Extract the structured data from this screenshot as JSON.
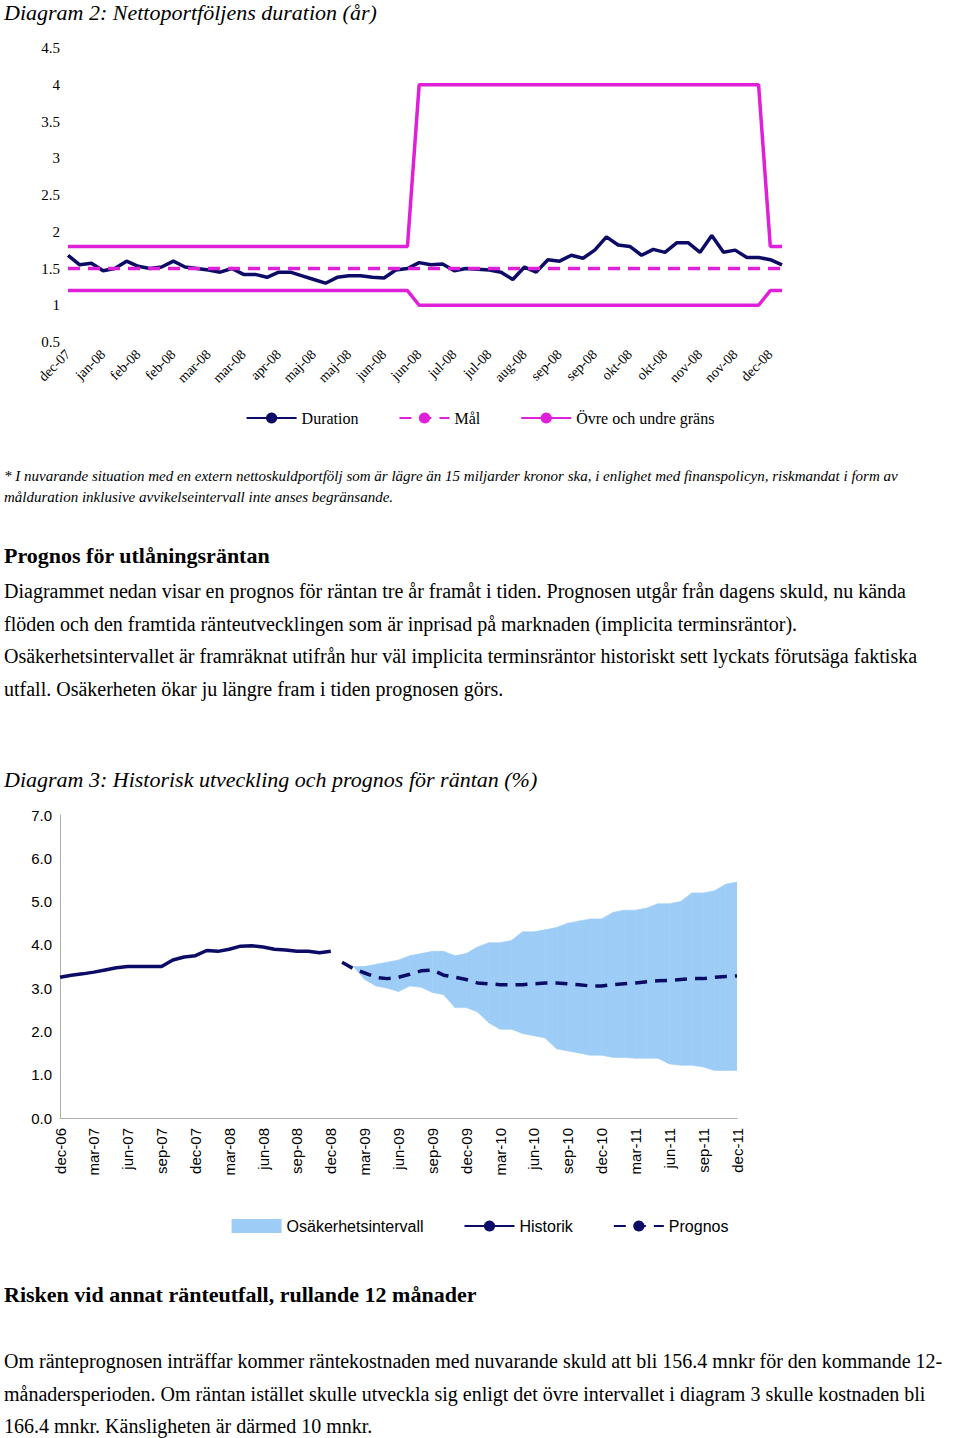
{
  "chart_data": [
    {
      "type": "line",
      "title": "Diagram 2: Nettoportföljens duration (år)",
      "categories": [
        "dec-07",
        null,
        null,
        "jan-08",
        null,
        null,
        "feb-08",
        null,
        null,
        "feb-08",
        null,
        null,
        "mar-08",
        null,
        null,
        "mar-08",
        null,
        null,
        "apr-08",
        null,
        null,
        "maj-08",
        null,
        null,
        "maj-08",
        null,
        null,
        "jun-08",
        null,
        null,
        "jun-08",
        null,
        null,
        "jul-08",
        null,
        null,
        "jul-08",
        null,
        null,
        "aug-08",
        null,
        null,
        "sep-08",
        null,
        null,
        "sep-08",
        null,
        null,
        "okt-08",
        null,
        null,
        "okt-08",
        null,
        null,
        "nov-08",
        null,
        null,
        "nov-08",
        null,
        null,
        "dec-08",
        null
      ],
      "series": [
        {
          "name": "Duration",
          "color": "#0c0c66",
          "line_style": "solid",
          "values": [
            1.68,
            1.55,
            1.57,
            1.47,
            1.5,
            1.6,
            1.53,
            1.5,
            1.52,
            1.6,
            1.52,
            1.5,
            1.48,
            1.45,
            1.5,
            1.42,
            1.42,
            1.38,
            1.45,
            1.45,
            1.4,
            1.35,
            1.3,
            1.38,
            1.4,
            1.4,
            1.38,
            1.37,
            1.48,
            1.5,
            1.58,
            1.55,
            1.56,
            1.47,
            1.5,
            1.49,
            1.48,
            1.45,
            1.35,
            1.52,
            1.45,
            1.62,
            1.6,
            1.68,
            1.64,
            1.75,
            1.93,
            1.82,
            1.8,
            1.68,
            1.76,
            1.72,
            1.85,
            1.85,
            1.72,
            1.95,
            1.72,
            1.75,
            1.65,
            1.65,
            1.62,
            1.55
          ]
        },
        {
          "name": "Mål",
          "color": "#e020d8",
          "line_style": "dashed",
          "values": [
            1.5,
            1.5,
            1.5,
            1.5,
            1.5,
            1.5,
            1.5,
            1.5,
            1.5,
            1.5,
            1.5,
            1.5,
            1.5,
            1.5,
            1.5,
            1.5,
            1.5,
            1.5,
            1.5,
            1.5,
            1.5,
            1.5,
            1.5,
            1.5,
            1.5,
            1.5,
            1.5,
            1.5,
            1.5,
            1.5,
            1.5,
            1.5,
            1.5,
            1.5,
            1.5,
            1.5,
            1.5,
            1.5,
            1.5,
            1.5,
            1.5,
            1.5,
            1.5,
            1.5,
            1.5,
            1.5,
            1.5,
            1.5,
            1.5,
            1.5,
            1.5,
            1.5,
            1.5,
            1.5,
            1.5,
            1.5,
            1.5,
            1.5,
            1.5,
            1.5,
            1.5,
            1.5
          ]
        },
        {
          "name": "Övre och undre gräns",
          "color": "#e020d8",
          "line_style": "solid",
          "values": [
            1.8,
            1.8,
            1.8,
            1.8,
            1.8,
            1.8,
            1.8,
            1.8,
            1.8,
            1.8,
            1.8,
            1.8,
            1.8,
            1.8,
            1.8,
            1.8,
            1.8,
            1.8,
            1.8,
            1.8,
            1.8,
            1.8,
            1.8,
            1.8,
            1.8,
            1.8,
            1.8,
            1.8,
            1.8,
            1.8,
            4,
            4,
            4,
            4,
            4,
            4,
            4,
            4,
            4,
            4,
            4,
            4,
            4,
            4,
            4,
            4,
            4,
            4,
            4,
            4,
            4,
            4,
            4,
            4,
            4,
            4,
            4,
            4,
            4,
            4,
            1.8,
            1.8
          ]
        },
        {
          "name": "Övre och undre gräns",
          "color": "#e020d8",
          "line_style": "solid",
          "values": [
            1.2,
            1.2,
            1.2,
            1.2,
            1.2,
            1.2,
            1.2,
            1.2,
            1.2,
            1.2,
            1.2,
            1.2,
            1.2,
            1.2,
            1.2,
            1.2,
            1.2,
            1.2,
            1.2,
            1.2,
            1.2,
            1.2,
            1.2,
            1.2,
            1.2,
            1.2,
            1.2,
            1.2,
            1.2,
            1.2,
            1,
            1,
            1,
            1,
            1,
            1,
            1,
            1,
            1,
            1,
            1,
            1,
            1,
            1,
            1,
            1,
            1,
            1,
            1,
            1,
            1,
            1,
            1,
            1,
            1,
            1,
            1,
            1,
            1,
            1,
            1.2,
            1.2
          ]
        }
      ],
      "ylim": [
        0.5,
        4.5
      ],
      "yticks": [
        0.5,
        1,
        1.5,
        2,
        2.5,
        3,
        3.5,
        4,
        4.5
      ],
      "grid": false,
      "legend": "bottom"
    },
    {
      "type": "line",
      "title": "Diagram 3: Historisk utveckling och prognos för räntan (%)",
      "categories": [
        "dec-06",
        null,
        null,
        "mar-07",
        null,
        null,
        "jun-07",
        null,
        null,
        "sep-07",
        null,
        null,
        "dec-07",
        null,
        null,
        "mar-08",
        null,
        null,
        "jun-08",
        null,
        null,
        "sep-08",
        null,
        null,
        "dec-08",
        null,
        null,
        "mar-09",
        null,
        null,
        "jun-09",
        null,
        null,
        "sep-09",
        null,
        null,
        "dec-09",
        null,
        null,
        "mar-10",
        null,
        null,
        "jun-10",
        null,
        null,
        "sep-10",
        null,
        null,
        "dec-10",
        null,
        null,
        "mar-11",
        null,
        null,
        "jun-11",
        null,
        null,
        "sep-11",
        null,
        null,
        "dec-11"
      ],
      "series": [
        {
          "name": "Osäkerhetsintervall",
          "type": "band",
          "color": "#9dcdf6",
          "lower": [
            null,
            null,
            null,
            null,
            null,
            null,
            null,
            null,
            null,
            null,
            null,
            null,
            null,
            null,
            null,
            null,
            null,
            null,
            null,
            null,
            null,
            null,
            null,
            null,
            null,
            3.6,
            3.5,
            3.2,
            3.05,
            3.0,
            2.92,
            3.05,
            3.02,
            2.9,
            2.85,
            2.55,
            2.55,
            2.45,
            2.2,
            2.05,
            2.05,
            1.95,
            1.9,
            1.85,
            1.6,
            1.55,
            1.5,
            1.45,
            1.45,
            1.4,
            1.4,
            1.38,
            1.38,
            1.38,
            1.25,
            1.22,
            1.22,
            1.18,
            1.1,
            1.1,
            1.1
          ],
          "upper": [
            null,
            null,
            null,
            null,
            null,
            null,
            null,
            null,
            null,
            null,
            null,
            null,
            null,
            null,
            null,
            null,
            null,
            null,
            null,
            null,
            null,
            null,
            null,
            null,
            null,
            3.6,
            3.5,
            3.5,
            3.55,
            3.6,
            3.65,
            3.75,
            3.8,
            3.85,
            3.85,
            3.75,
            3.8,
            3.95,
            4.05,
            4.05,
            4.1,
            4.3,
            4.3,
            4.35,
            4.4,
            4.5,
            4.55,
            4.6,
            4.6,
            4.75,
            4.8,
            4.8,
            4.85,
            4.95,
            4.95,
            5.0,
            5.2,
            5.2,
            5.25,
            5.4,
            5.45
          ]
        },
        {
          "name": "Historik",
          "type": "line",
          "color": "#0c0c66",
          "line_style": "solid",
          "values": [
            3.25,
            3.3,
            3.33,
            3.37,
            3.42,
            3.47,
            3.5,
            3.5,
            3.5,
            3.5,
            3.65,
            3.72,
            3.75,
            3.87,
            3.85,
            3.9,
            3.97,
            3.98,
            3.95,
            3.9,
            3.88,
            3.85,
            3.85,
            3.82,
            3.85,
            null,
            null,
            null,
            null,
            null,
            null,
            null,
            null,
            null,
            null,
            null,
            null,
            null,
            null,
            null,
            null,
            null,
            null,
            null,
            null,
            null,
            null,
            null,
            null,
            null,
            null,
            null,
            null,
            null,
            null,
            null,
            null,
            null,
            null,
            null,
            null
          ]
        },
        {
          "name": "Prognos",
          "type": "line",
          "color": "#0c0c66",
          "line_style": "dashed",
          "values": [
            null,
            null,
            null,
            null,
            null,
            null,
            null,
            null,
            null,
            null,
            null,
            null,
            null,
            null,
            null,
            null,
            null,
            null,
            null,
            null,
            null,
            null,
            null,
            null,
            null,
            3.6,
            3.45,
            3.35,
            3.25,
            3.22,
            3.25,
            3.32,
            3.4,
            3.42,
            3.3,
            3.25,
            3.2,
            3.12,
            3.1,
            3.08,
            3.08,
            3.08,
            3.1,
            3.12,
            3.12,
            3.1,
            3.08,
            3.05,
            3.05,
            3.08,
            3.1,
            3.12,
            3.15,
            3.17,
            3.18,
            3.2,
            3.22,
            3.22,
            3.25,
            3.27,
            3.28
          ]
        }
      ],
      "ylim": [
        0,
        7
      ],
      "yticks": [
        {
          "value": 0,
          "label": "0.0"
        },
        {
          "value": 1,
          "label": "1.0"
        },
        {
          "value": 2,
          "label": "2.0"
        },
        {
          "value": 3,
          "label": "3.0"
        },
        {
          "value": 4,
          "label": "4.0"
        },
        {
          "value": 5,
          "label": "5.0"
        },
        {
          "value": 6,
          "label": "6.0"
        },
        {
          "value": 7,
          "label": "7.0"
        }
      ],
      "grid": false,
      "legend": "bottom"
    }
  ],
  "text": {
    "footnote": "* I nuvarande situation med en extern nettoskuldportfölj som är lägre än 15 miljarder kronor ska, i enlighet med finanspolicyn, riskmandat i form av målduration inklusive avvikelseintervall inte anses begränsande.",
    "section_1": {
      "heading": "Prognos för utlåningsräntan",
      "paragraph": "Diagrammet nedan visar en prognos för räntan tre år framåt i tiden. Prognosen utgår från dagens skuld, nu kända flöden och den framtida ränteutvecklingen som är inprisad på marknaden (implicita terminsräntor). Osäkerhetsintervallet är framräknat utifrån hur väl implicita terminsräntor historiskt sett lyckats förutsäga faktiska utfall. Osäkerheten ökar ju längre fram i tiden prognosen görs."
    },
    "section_2": {
      "heading": "Risken vid annat ränteutfall, rullande 12 månader",
      "paragraph": "Om ränteprognosen inträffar kommer räntekostnaden med nuvarande skuld att bli 156.4 mnkr för den kommande 12-månadersperioden. Om räntan istället skulle utveckla sig enligt det övre intervallet i diagram 3 skulle kostnaden bli 166.4 mnkr. Känsligheten är därmed 10 mnkr."
    }
  }
}
